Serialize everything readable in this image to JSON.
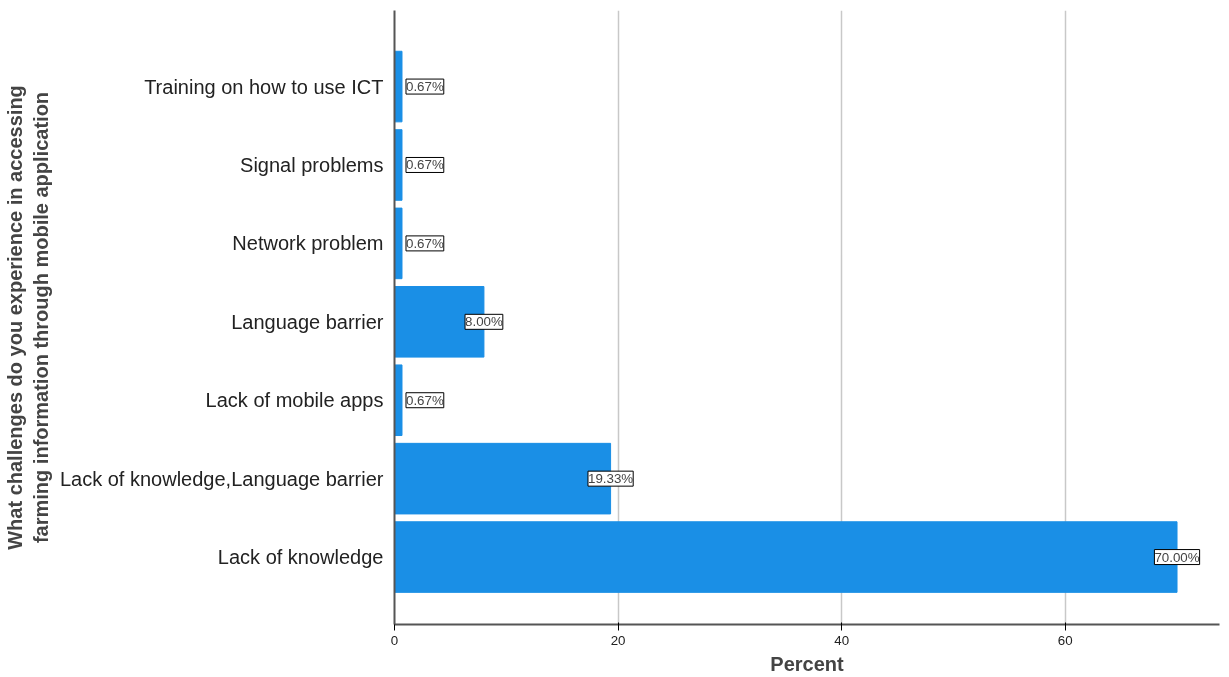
{
  "chart_data": {
    "type": "bar",
    "orientation": "horizontal",
    "xlabel": "Percent",
    "ylabel": "What challenges do you experience in accessing\nfarming information through mobile application",
    "categories": [
      "Training on how to use ICT",
      "Signal problems",
      "Network problem",
      "Language barrier",
      "Lack of mobile apps",
      "Lack of knowledge,Language barrier",
      "Lack of knowledge"
    ],
    "values": [
      0.67,
      0.67,
      0.67,
      8.0,
      0.67,
      19.33,
      70.0
    ],
    "value_labels": [
      "0.67%",
      "0.67%",
      "0.67%",
      "8.00%",
      "0.67%",
      "19.33%",
      "70.00%"
    ],
    "color": "#1a8fe6",
    "xlim": [
      0,
      73.8
    ],
    "xticks": [
      0,
      20,
      40,
      60
    ],
    "grid": "x"
  }
}
